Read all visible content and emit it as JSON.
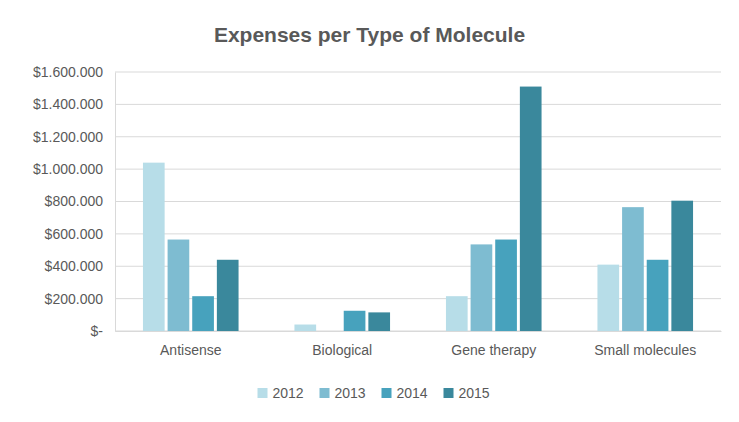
{
  "chart_data": {
    "type": "bar",
    "title": "Expenses per Type of Molecule",
    "categories": [
      "Antisense",
      "Biological",
      "Gene therapy",
      "Small molecules"
    ],
    "series": [
      {
        "name": "2012",
        "color": "#b7dde8",
        "values": [
          1040000,
          40000,
          215000,
          410000
        ]
      },
      {
        "name": "2013",
        "color": "#7ebcd1",
        "values": [
          565000,
          0,
          535000,
          765000
        ]
      },
      {
        "name": "2014",
        "color": "#47a2bd",
        "values": [
          215000,
          125000,
          565000,
          440000
        ]
      },
      {
        "name": "2015",
        "color": "#3a889c",
        "values": [
          440000,
          115000,
          1510000,
          805000
        ]
      }
    ],
    "ylim": [
      0,
      1600000
    ],
    "yticks": [
      {
        "value": 0,
        "label": "$-"
      },
      {
        "value": 200000,
        "label": "$200.000"
      },
      {
        "value": 400000,
        "label": "$400.000"
      },
      {
        "value": 600000,
        "label": "$600.000"
      },
      {
        "value": 800000,
        "label": "$800.000"
      },
      {
        "value": 1000000,
        "label": "$1.000.000"
      },
      {
        "value": 1200000,
        "label": "$1.200.000"
      },
      {
        "value": 1400000,
        "label": "$1.400.000"
      },
      {
        "value": 1600000,
        "label": "$1.600.000"
      }
    ],
    "grid": true,
    "legend": "bottom"
  }
}
